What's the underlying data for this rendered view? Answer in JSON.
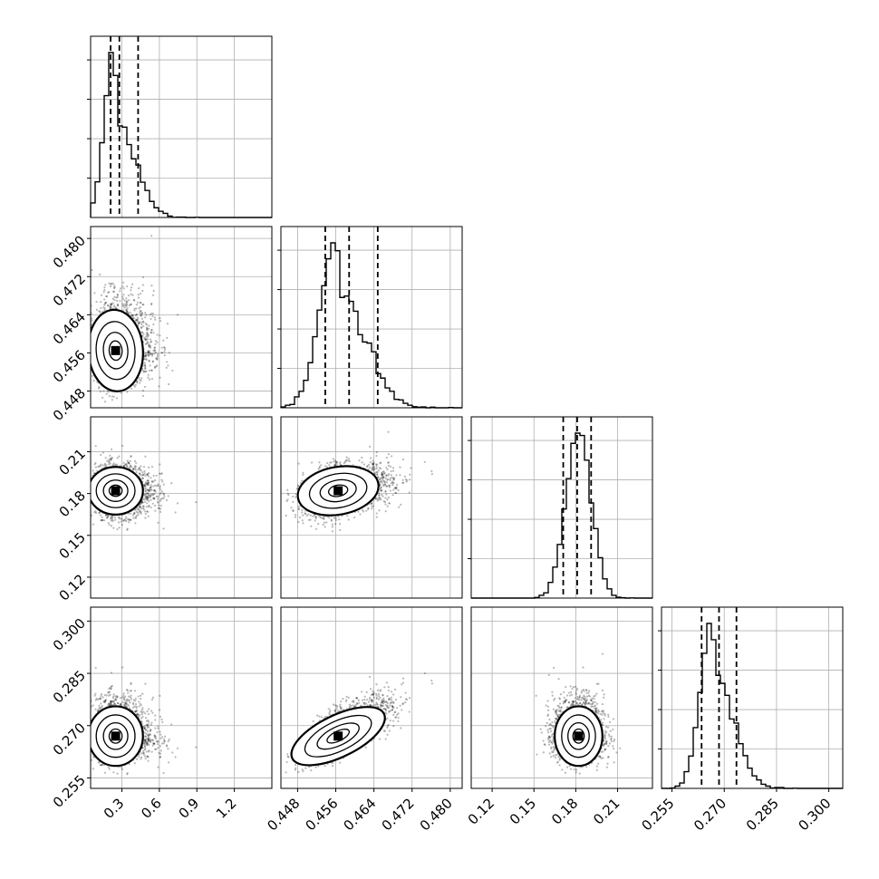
{
  "chart_data": {
    "type": "corner",
    "parameters": [
      {
        "ticks": [
          0.3,
          0.6,
          0.9,
          1.2
        ],
        "tick_labels": [
          "0.3",
          "0.6",
          "0.9",
          "1.2"
        ],
        "range": [
          0.05,
          1.5
        ],
        "quantiles": [
          0.21,
          0.28,
          0.43
        ],
        "hist_mode": 0.25,
        "hist_sigma_left": 0.08,
        "hist_sigma_right": 0.15
      },
      {
        "ticks": [
          0.448,
          0.456,
          0.464,
          0.472,
          0.48
        ],
        "tick_labels": [
          "0.448",
          "0.456",
          "0.464",
          "0.472",
          "0.480"
        ],
        "range": [
          0.4445,
          0.4825
        ],
        "quantiles": [
          0.4538,
          0.4588,
          0.4648
        ],
        "hist_mode": 0.4565,
        "hist_sigma_left": 0.0035,
        "hist_sigma_right": 0.0055
      },
      {
        "ticks": [
          0.12,
          0.15,
          0.18,
          0.21
        ],
        "tick_labels": [
          "0.12",
          "0.15",
          "0.18",
          "0.21"
        ],
        "range": [
          0.105,
          0.235
        ],
        "quantiles": [
          0.171,
          0.181,
          0.191
        ],
        "hist_mode": 0.182,
        "hist_sigma_left": 0.009,
        "hist_sigma_right": 0.009
      },
      {
        "ticks": [
          0.255,
          0.27,
          0.285,
          0.3
        ],
        "tick_labels": [
          "0.255",
          "0.270",
          "0.285",
          "0.300"
        ],
        "range": [
          0.252,
          0.304
        ],
        "quantiles": [
          0.2635,
          0.2685,
          0.2735
        ],
        "hist_mode": 0.267,
        "hist_sigma_left": 0.0035,
        "hist_sigma_right": 0.0055
      }
    ],
    "grid": true
  }
}
